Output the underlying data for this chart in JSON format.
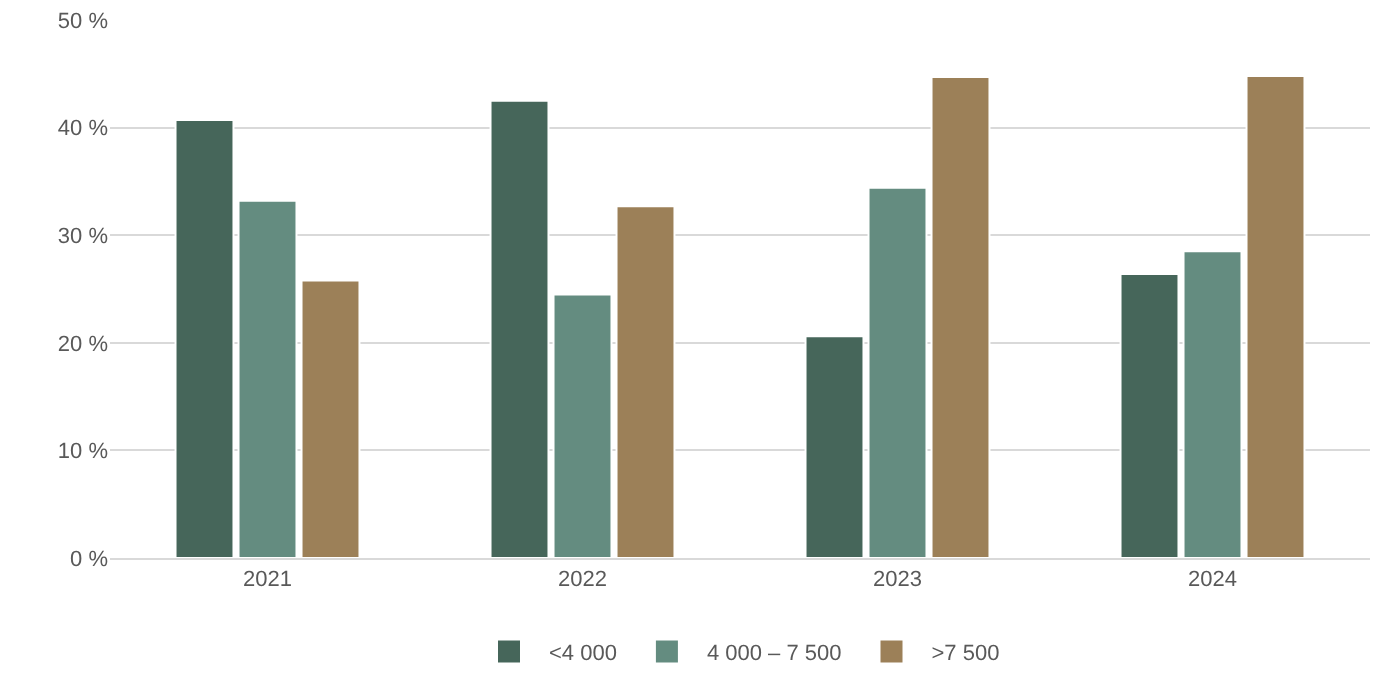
{
  "chart_data": {
    "type": "bar",
    "categories": [
      "2021",
      "2022",
      "2023",
      "2024"
    ],
    "series": [
      {
        "name": "<4 000",
        "color": "#46665a",
        "values": [
          40.7,
          42.5,
          20.6,
          26.4
        ]
      },
      {
        "name": "4 000 – 7 500",
        "color": "#648c80",
        "values": [
          33.2,
          24.5,
          34.4,
          28.5
        ]
      },
      {
        "name": ">7 500",
        "color": "#9c8058",
        "values": [
          25.8,
          32.7,
          44.7,
          44.8
        ]
      }
    ],
    "ylim": [
      0,
      50
    ],
    "yticks": [
      {
        "value": 0,
        "label": "0 %"
      },
      {
        "value": 10,
        "label": "10 %"
      },
      {
        "value": 20,
        "label": "20 %"
      },
      {
        "value": 30,
        "label": "30 %"
      },
      {
        "value": 40,
        "label": "40 %"
      },
      {
        "value": 50,
        "label": "50 %"
      }
    ],
    "grid": "y",
    "legend": "bottom"
  }
}
